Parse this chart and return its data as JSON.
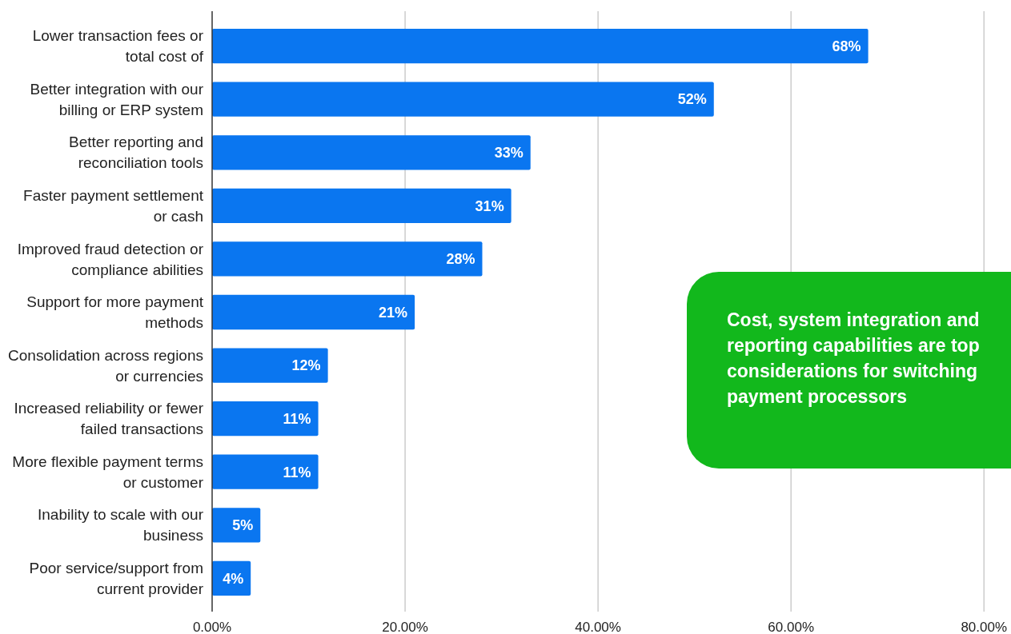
{
  "chart_data": {
    "type": "bar",
    "orientation": "horizontal",
    "categories": [
      "Lower transaction fees or total cost of",
      "Better integration with our billing or ERP system",
      "Better reporting and reconciliation tools",
      "Faster payment settlement or cash",
      "Improved fraud detection or compliance abilities",
      "Support for more payment methods",
      "Consolidation across regions or currencies",
      "Increased reliability or fewer failed transactions",
      "More flexible payment terms or customer",
      "Inability to scale with our business",
      "Poor service/support from current provider"
    ],
    "values": [
      68,
      52,
      33,
      31,
      28,
      21,
      12,
      11,
      11,
      5,
      4
    ],
    "value_labels": [
      "68%",
      "52%",
      "33%",
      "31%",
      "28%",
      "21%",
      "12%",
      "11%",
      "11%",
      "5%",
      "4%"
    ],
    "color": "#0a76f0",
    "xlim": [
      0,
      82.8
    ],
    "xticks": [
      {
        "value": 0,
        "label": "0.00%"
      },
      {
        "value": 20,
        "label": "20.00%"
      },
      {
        "value": 40,
        "label": "40.00%"
      },
      {
        "value": 60,
        "label": "60.00%"
      },
      {
        "value": 80,
        "label": "80.00%"
      }
    ],
    "grid": "x",
    "annotations": [
      "Cost, system integration and reporting capabilities are top considerations for switching payment processors"
    ]
  }
}
